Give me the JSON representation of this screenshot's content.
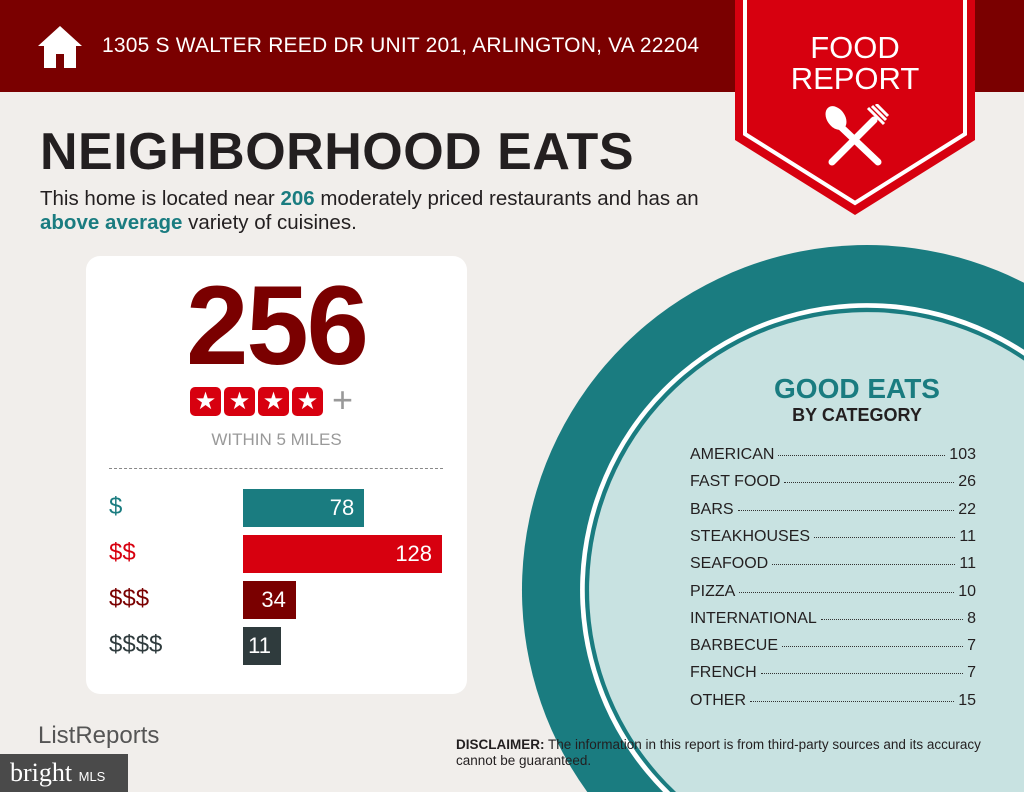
{
  "header": {
    "address": "1305 S WALTER REED DR UNIT 201, ARLINGTON, VA 22204",
    "badge_line1": "FOOD",
    "badge_line2": "REPORT"
  },
  "title": "NEIGHBORHOOD EATS",
  "description": {
    "pre": "This home is located near ",
    "count": "206",
    "mid": " moderately priced restaurants and has an ",
    "variety": "above average",
    "post": " variety of cuisines."
  },
  "summary": {
    "total": "256",
    "stars": 4,
    "plus": "+",
    "within": "WITHIN 5 MILES"
  },
  "price_bars": [
    {
      "label": "$",
      "value": 78,
      "color": "#1a7c80"
    },
    {
      "label": "$$",
      "value": 128,
      "color": "#d7000f"
    },
    {
      "label": "$$$",
      "value": 34,
      "color": "#7a0000"
    },
    {
      "label": "$$$$",
      "value": 11,
      "color": "#2f3b3d"
    }
  ],
  "good_eats": {
    "title": "GOOD EATS",
    "subtitle": "BY CATEGORY",
    "categories": [
      {
        "name": "AMERICAN",
        "count": "103"
      },
      {
        "name": "FAST FOOD",
        "count": "26"
      },
      {
        "name": "BARS",
        "count": "22"
      },
      {
        "name": "STEAKHOUSES",
        "count": "11"
      },
      {
        "name": "SEAFOOD",
        "count": "11"
      },
      {
        "name": "PIZZA",
        "count": "10"
      },
      {
        "name": "INTERNATIONAL",
        "count": "8"
      },
      {
        "name": "BARBECUE",
        "count": "7"
      },
      {
        "name": "FRENCH",
        "count": "7"
      },
      {
        "name": "OTHER",
        "count": "15"
      }
    ]
  },
  "footer": {
    "logo": "ListReports",
    "watermark": "bright",
    "watermark_sub": "MLS",
    "disclaimer_label": "DISCLAIMER:",
    "disclaimer": " The information in this report is from third-party sources and its accuracy cannot be guaranteed."
  },
  "colors": {
    "dark_red": "#7a0000",
    "red": "#d7000f",
    "teal": "#1a7c80",
    "light_teal": "#c8e2e1"
  }
}
